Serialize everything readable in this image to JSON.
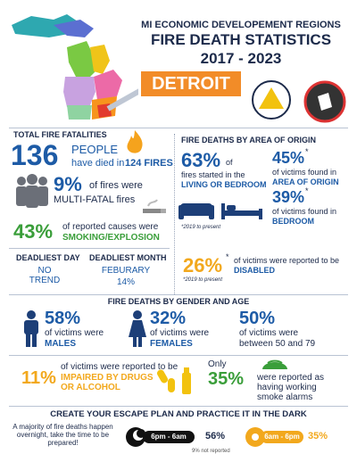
{
  "header": {
    "subtitle": "MI ECONOMIC DEVELOPEMENT REGIONS",
    "title": "FIRE DEATH STATISTICS",
    "years": "2017 - 2023",
    "region": "DETROIT"
  },
  "totals": {
    "heading": "TOTAL FIRE FATALITIES",
    "deaths": "136",
    "people": "PEOPLE",
    "died_in": "have died in",
    "fires": "124 FIRES",
    "multi_pct": "9%",
    "multi_text": "of fires were",
    "multi_label": "MULTI-FATAL fires",
    "cause_pct": "43%",
    "cause_text": "of reported causes were",
    "cause_label": "SMOKING/EXPLOSION"
  },
  "origin": {
    "heading": "FIRE DEATHS BY AREA OF ORIGIN",
    "living_pct": "63%",
    "living_of": "of",
    "living_text": "fires started in the",
    "living_label": "LIVING OR BEDROOM",
    "area_pct": "45%",
    "area_star": "*",
    "area_text": "of victims found in",
    "area_label": "AREA OF ORIGIN",
    "bed_pct": "39%",
    "bed_star": "*",
    "bed_text": "of victims found in",
    "bed_label": "BEDROOM",
    "note": "*2019 to present"
  },
  "deadliest": {
    "day_heading": "DEADLIEST DAY",
    "day_value": "NO TREND",
    "month_heading": "DEADLIEST MONTH",
    "month_value": "FEBURARY",
    "month_pct": "14%"
  },
  "disabled": {
    "pct": "26%",
    "star": "*",
    "text": "of victims were reported to be",
    "label": "DISABLED",
    "note": "*2019 to present"
  },
  "gender_age": {
    "heading": "FIRE DEATHS BY GENDER AND AGE",
    "male_pct": "58%",
    "male_text": "of victims were",
    "male_label": "MALES",
    "female_pct": "32%",
    "female_text": "of victims were",
    "female_label": "FEMALES",
    "age_pct": "50%",
    "age_text": "of victims were",
    "age_label": "between 50 and 79"
  },
  "impaired": {
    "pct": "11%",
    "text": "of victims were reported to be",
    "label": "IMPAIRED BY DRUGS OR ALCOHOL"
  },
  "alarms": {
    "only": "Only",
    "pct": "35%",
    "text": "were reported as having working smoke alarms"
  },
  "escape": {
    "heading": "CREATE YOUR ESCAPE PLAN AND PRACTICE IT IN THE DARK",
    "text": "A majority of fire deaths happen overnight, take the time to be prepared!",
    "night_label": "6pm - 6am",
    "night_pct": "56%",
    "day_label": "6am - 6pm",
    "day_pct": "35%",
    "note": "9% not reported"
  }
}
